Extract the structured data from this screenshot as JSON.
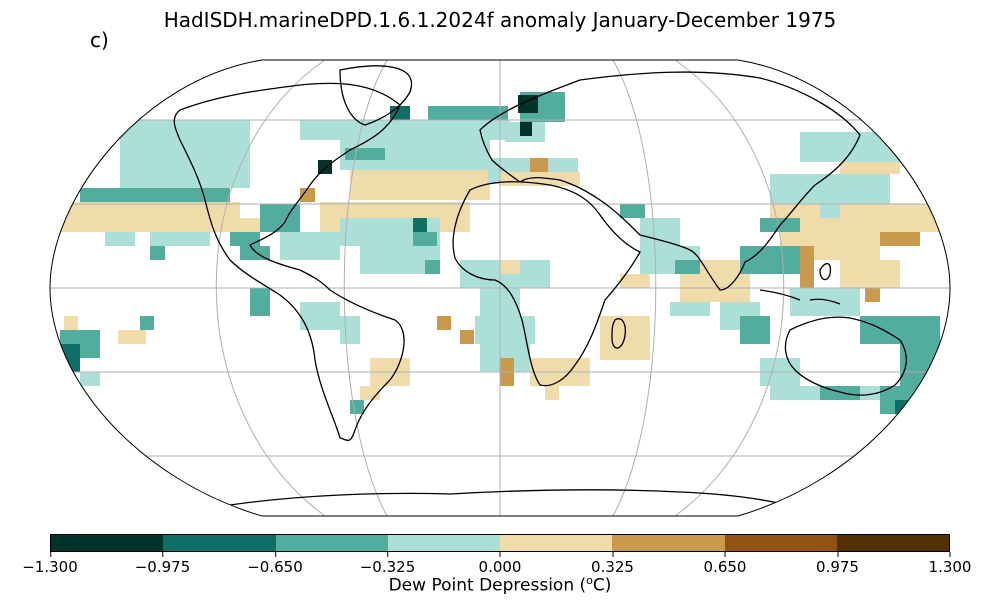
{
  "header": {
    "title": "HadISDH.marineDPD.1.6.1.2024f anomaly January-December 1975",
    "panel_label": "c)"
  },
  "colorbar": {
    "label_prefix": "Dew Point Depression (",
    "label_sup": "o",
    "label_suffix": "C)",
    "ticks": [
      "−1.300",
      "−0.975",
      "−0.650",
      "−0.325",
      "0.000",
      "0.325",
      "0.650",
      "0.975",
      "1.300"
    ],
    "colors": [
      "#01332b",
      "#0f6e65",
      "#52ad9f",
      "#acdfd7",
      "#f0dbab",
      "#c99a4d",
      "#8f5413",
      "#533006"
    ]
  }
}
